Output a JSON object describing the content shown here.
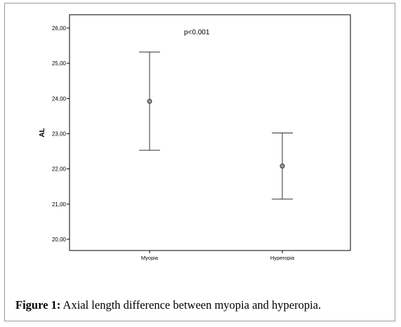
{
  "caption": {
    "label": "Figure 1:",
    "text": " Axial length difference between myopia and hyperopia."
  },
  "chart_data": {
    "type": "errorbar",
    "ylabel": "AL",
    "ylim": [
      20.0,
      26.0
    ],
    "yticks": [
      "20,00",
      "21,00",
      "22,00",
      "23,00",
      "24,00",
      "25,00",
      "26,00"
    ],
    "ytick_values": [
      20,
      21,
      22,
      23,
      24,
      25,
      26
    ],
    "categories": [
      "Myopia",
      "Hyperopia"
    ],
    "series": [
      {
        "mean": [
          23.92,
          22.08
        ],
        "lower": [
          22.53,
          21.14
        ],
        "upper": [
          25.32,
          23.02
        ]
      }
    ],
    "annotation": "p<0.001",
    "grid": false
  }
}
